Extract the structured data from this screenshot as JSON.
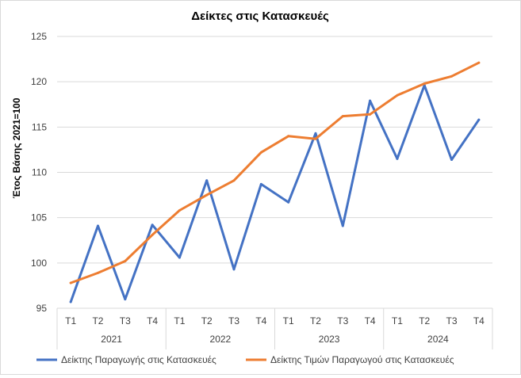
{
  "chart_data": {
    "type": "line",
    "title": "Δείκτες στις Κατασκευές",
    "xlabel": "",
    "ylabel": "Έτος Βάσης 2021=100",
    "ylim": [
      95,
      125
    ],
    "yticks": [
      "95",
      "100",
      "105",
      "110",
      "115",
      "120",
      "125"
    ],
    "grid": true,
    "legend_position": "bottom",
    "categories": [
      "T1",
      "T2",
      "T3",
      "T4",
      "T1",
      "T2",
      "T3",
      "T4",
      "T1",
      "T2",
      "T3",
      "T4",
      "T1",
      "T2",
      "T3",
      "T4"
    ],
    "groups": [
      "2021",
      "2022",
      "2023",
      "2024"
    ],
    "series": [
      {
        "name": "Δείκτης Παραγωγής στις Κατασκευές",
        "color": "#4472c4",
        "values": [
          95.7,
          104.1,
          96.0,
          104.2,
          100.6,
          109.1,
          99.3,
          108.7,
          106.7,
          114.3,
          104.1,
          117.9,
          111.5,
          119.6,
          111.4,
          115.8
        ]
      },
      {
        "name": "Δείκτης Τιμών Παραγωγού στις Κατασκευές",
        "color": "#ed7d31",
        "values": [
          97.8,
          98.9,
          100.2,
          103.1,
          105.8,
          107.5,
          109.1,
          112.2,
          114.0,
          113.7,
          116.2,
          116.4,
          118.5,
          119.8,
          120.6,
          122.1
        ]
      }
    ]
  }
}
